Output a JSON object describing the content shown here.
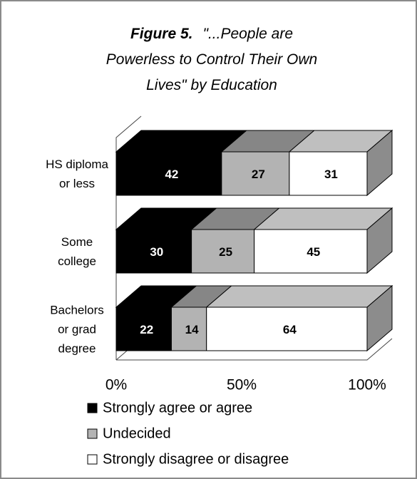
{
  "chart_data": {
    "type": "bar3d_stacked_horizontal",
    "figure_label": "Figure 5.",
    "title": "\"...People are Powerless to Control Their Own Lives\" by Education",
    "categories": [
      "HS diploma or less",
      "Some college",
      "Bachelors or grad degree"
    ],
    "series": [
      {
        "name": "Strongly agree or agree",
        "color": "#000000",
        "label_color": "#ffffff",
        "values": [
          42,
          30,
          22
        ]
      },
      {
        "name": "Undecided",
        "color": "#b3b3b3",
        "label_color": "#000000",
        "values": [
          27,
          25,
          14
        ]
      },
      {
        "name": "Strongly disagree or disagree",
        "color": "#ffffff",
        "label_color": "#000000",
        "values": [
          31,
          45,
          64
        ]
      }
    ],
    "xlim": [
      0,
      100
    ],
    "xticks": [
      {
        "value": 0,
        "label": "0%"
      },
      {
        "value": 50,
        "label": "50%"
      },
      {
        "value": 100,
        "label": "100%"
      }
    ]
  }
}
